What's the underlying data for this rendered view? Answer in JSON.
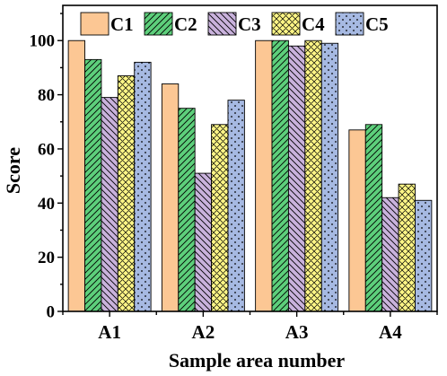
{
  "chart_data": {
    "type": "bar",
    "categories": [
      "A1",
      "A2",
      "A3",
      "A4"
    ],
    "series": [
      {
        "name": "C1",
        "values": [
          100,
          84,
          100,
          67
        ],
        "color": "#fcc794",
        "pattern": "solid"
      },
      {
        "name": "C2",
        "values": [
          93,
          75,
          100,
          69
        ],
        "color": "#5dcf7b",
        "pattern": "diagonal-up"
      },
      {
        "name": "C3",
        "values": [
          79,
          51,
          98,
          42
        ],
        "color": "#c9b2dc",
        "pattern": "diagonal-down"
      },
      {
        "name": "C4",
        "values": [
          87,
          69,
          100,
          47
        ],
        "color": "#fcf586",
        "pattern": "crosshatch"
      },
      {
        "name": "C5",
        "values": [
          92,
          78,
          99,
          41
        ],
        "color": "#a6b9e2",
        "pattern": "dots"
      }
    ],
    "xlabel": "Sample area number",
    "ylabel": "Score",
    "ylim": [
      0,
      113
    ],
    "yticks": [
      0,
      20,
      40,
      60,
      80,
      100
    ],
    "legend": "top-inside",
    "grid": false
  }
}
